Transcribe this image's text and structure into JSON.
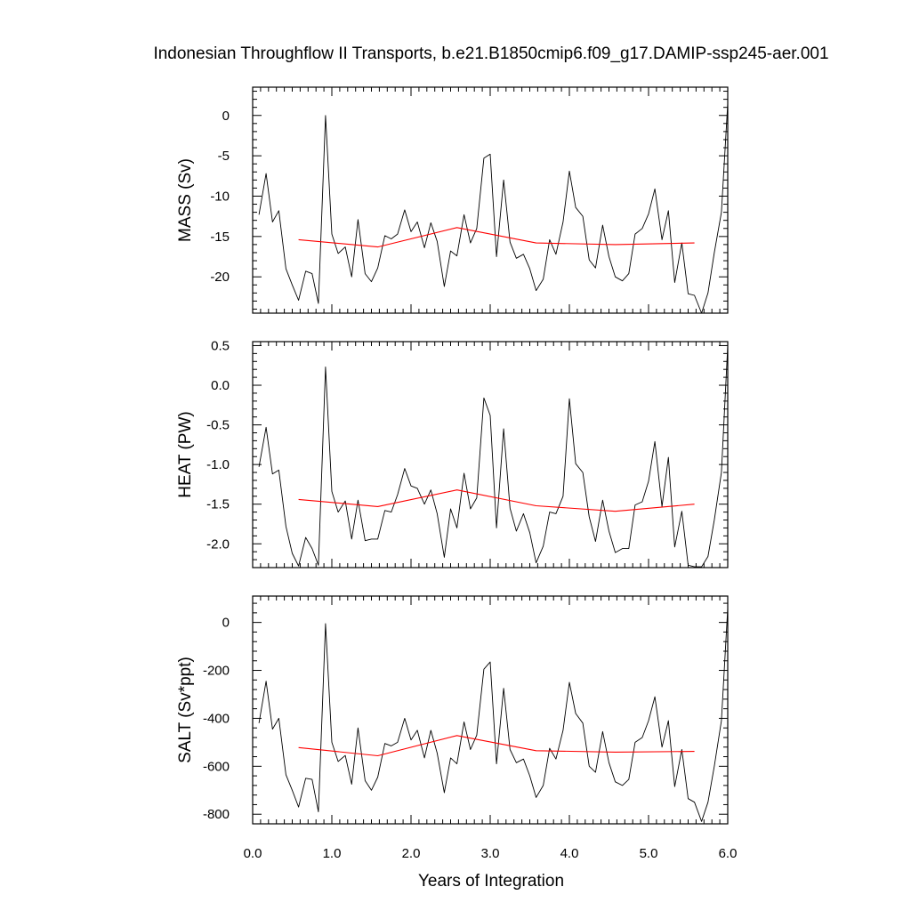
{
  "chart_data": {
    "type": "line",
    "title": "Indonesian Throughflow II Transports, b.e21.B1850cmip6.f09_g17.DAMIP-ssp245-aer.001",
    "xlabel": "Years of Integration",
    "xlim": [
      0,
      6
    ],
    "xticks": [
      0,
      1,
      2,
      3,
      4,
      5,
      6
    ],
    "xtick_labels": [
      "0.0",
      "1.0",
      "2.0",
      "3.0",
      "4.0",
      "5.0",
      "6.0"
    ],
    "panels": [
      {
        "ylabel": "MASS (Sv)",
        "ylim": [
          -24.5,
          3.5
        ],
        "yticks": [
          0,
          -5,
          -10,
          -15,
          -20
        ],
        "ytick_labels": [
          "0",
          "-5",
          "-10",
          "-15",
          "-20"
        ],
        "series": [
          {
            "color": "#000000",
            "x": [
              0.08,
              0.17,
              0.25,
              0.33,
              0.42,
              0.5,
              0.58,
              0.67,
              0.75,
              0.83,
              0.92,
              1.0,
              1.08,
              1.17,
              1.25,
              1.33,
              1.42,
              1.5,
              1.58,
              1.67,
              1.75,
              1.83,
              1.92,
              2.0,
              2.08,
              2.17,
              2.25,
              2.33,
              2.42,
              2.5,
              2.58,
              2.67,
              2.75,
              2.83,
              2.92,
              3.0,
              3.08,
              3.17,
              3.25,
              3.33,
              3.42,
              3.5,
              3.58,
              3.67,
              3.75,
              3.83,
              3.92,
              4.0,
              4.08,
              4.17,
              4.25,
              4.33,
              4.42,
              4.5,
              4.58,
              4.67,
              4.75,
              4.83,
              4.92,
              5.0,
              5.08,
              5.17,
              5.25,
              5.33,
              5.42,
              5.5,
              5.58,
              5.67,
              5.75,
              5.83,
              5.92,
              6.0
            ],
            "y": [
              -12.3,
              -7.2,
              -13.2,
              -11.8,
              -19.0,
              -21.0,
              -22.9,
              -19.3,
              -19.6,
              -23.3,
              0.0,
              -14.7,
              -17.1,
              -16.3,
              -20.0,
              -12.9,
              -19.6,
              -20.6,
              -18.9,
              -14.9,
              -15.3,
              -14.7,
              -11.7,
              -14.4,
              -13.2,
              -16.4,
              -13.3,
              -15.6,
              -21.2,
              -16.8,
              -17.4,
              -12.3,
              -15.8,
              -14.0,
              -5.3,
              -4.8,
              -17.5,
              -8.0,
              -15.7,
              -17.7,
              -17.2,
              -19.0,
              -21.7,
              -20.3,
              -15.4,
              -17.2,
              -13.2,
              -6.9,
              -11.4,
              -12.5,
              -17.9,
              -18.9,
              -13.6,
              -17.5,
              -20.0,
              -20.5,
              -19.6,
              -14.7,
              -14.0,
              -12.2,
              -9.1,
              -15.4,
              -11.8,
              -20.7,
              -15.8,
              -22.1,
              -22.3,
              -24.5,
              -22.0,
              -17.0,
              -12.0,
              1.5
            ]
          },
          {
            "color": "#ff0000",
            "x": [
              0.58,
              1.58,
              2.58,
              3.58,
              4.58,
              5.58
            ],
            "y": [
              -15.4,
              -16.3,
              -13.9,
              -15.8,
              -16.0,
              -15.8
            ]
          }
        ]
      },
      {
        "ylabel": "HEAT (PW)",
        "ylim": [
          -2.3,
          0.55
        ],
        "yticks": [
          0.5,
          0.0,
          -0.5,
          -1.0,
          -1.5,
          -2.0
        ],
        "ytick_labels": [
          "0.5",
          "0.0",
          "-0.5",
          "-1.0",
          "-1.5",
          "-2.0"
        ],
        "series": [
          {
            "color": "#000000",
            "x": [
              0.08,
              0.17,
              0.25,
              0.33,
              0.42,
              0.5,
              0.58,
              0.67,
              0.75,
              0.83,
              0.92,
              1.0,
              1.08,
              1.17,
              1.25,
              1.33,
              1.42,
              1.5,
              1.58,
              1.67,
              1.75,
              1.83,
              1.92,
              2.0,
              2.08,
              2.17,
              2.25,
              2.33,
              2.42,
              2.5,
              2.58,
              2.67,
              2.75,
              2.83,
              2.92,
              3.0,
              3.08,
              3.17,
              3.25,
              3.33,
              3.42,
              3.5,
              3.58,
              3.67,
              3.75,
              3.83,
              3.92,
              4.0,
              4.08,
              4.17,
              4.25,
              4.33,
              4.42,
              4.5,
              4.58,
              4.67,
              4.75,
              4.83,
              4.92,
              5.0,
              5.08,
              5.17,
              5.25,
              5.33,
              5.42,
              5.5,
              5.58,
              5.67,
              5.75,
              5.83,
              5.92,
              6.0
            ],
            "y": [
              -1.03,
              -0.53,
              -1.12,
              -1.07,
              -1.78,
              -2.12,
              -2.28,
              -1.92,
              -2.06,
              -2.27,
              0.23,
              -1.34,
              -1.6,
              -1.46,
              -1.94,
              -1.45,
              -1.96,
              -1.94,
              -1.94,
              -1.58,
              -1.6,
              -1.38,
              -1.05,
              -1.27,
              -1.3,
              -1.5,
              -1.32,
              -1.62,
              -2.17,
              -1.56,
              -1.8,
              -1.11,
              -1.56,
              -1.42,
              -0.16,
              -0.38,
              -1.8,
              -0.55,
              -1.55,
              -1.84,
              -1.62,
              -1.86,
              -2.24,
              -2.03,
              -1.6,
              -1.62,
              -1.4,
              -0.17,
              -0.99,
              -1.1,
              -1.66,
              -1.97,
              -1.45,
              -1.84,
              -2.11,
              -2.06,
              -2.06,
              -1.51,
              -1.47,
              -1.21,
              -0.71,
              -1.53,
              -0.91,
              -2.04,
              -1.59,
              -2.27,
              -2.29,
              -2.29,
              -2.16,
              -1.7,
              -1.1,
              0.5
            ]
          },
          {
            "color": "#ff0000",
            "x": [
              0.58,
              1.58,
              2.58,
              3.58,
              4.58,
              5.58
            ],
            "y": [
              -1.44,
              -1.53,
              -1.32,
              -1.52,
              -1.59,
              -1.5
            ]
          }
        ]
      },
      {
        "ylabel": "SALT (Sv*ppt)",
        "ylim": [
          -840,
          110
        ],
        "yticks": [
          0,
          -200,
          -400,
          -600,
          -800
        ],
        "ytick_labels": [
          "0",
          "-200",
          "-400",
          "-600",
          "-800"
        ],
        "series": [
          {
            "color": "#000000",
            "x": [
              0.08,
              0.17,
              0.25,
              0.33,
              0.42,
              0.5,
              0.58,
              0.67,
              0.75,
              0.83,
              0.92,
              1.0,
              1.08,
              1.17,
              1.25,
              1.33,
              1.42,
              1.5,
              1.58,
              1.67,
              1.75,
              1.83,
              1.92,
              2.0,
              2.08,
              2.17,
              2.25,
              2.33,
              2.42,
              2.5,
              2.58,
              2.67,
              2.75,
              2.83,
              2.92,
              3.0,
              3.08,
              3.17,
              3.25,
              3.33,
              3.42,
              3.5,
              3.58,
              3.67,
              3.75,
              3.83,
              3.92,
              4.0,
              4.08,
              4.17,
              4.25,
              4.33,
              4.42,
              4.5,
              4.58,
              4.67,
              4.75,
              4.83,
              4.92,
              5.0,
              5.08,
              5.17,
              5.25,
              5.33,
              5.42,
              5.5,
              5.58,
              5.67,
              5.75,
              5.83,
              5.92,
              6.0
            ],
            "y": [
              -420,
              -245,
              -445,
              -400,
              -635,
              -700,
              -770,
              -650,
              -655,
              -790,
              -5,
              -500,
              -580,
              -555,
              -675,
              -440,
              -660,
              -700,
              -645,
              -505,
              -515,
              -500,
              -400,
              -490,
              -450,
              -565,
              -450,
              -545,
              -710,
              -565,
              -590,
              -415,
              -530,
              -470,
              -195,
              -165,
              -590,
              -275,
              -530,
              -585,
              -570,
              -640,
              -730,
              -680,
              -525,
              -570,
              -450,
              -250,
              -380,
              -420,
              -600,
              -625,
              -455,
              -585,
              -665,
              -680,
              -655,
              -500,
              -480,
              -410,
              -310,
              -520,
              -410,
              -685,
              -530,
              -735,
              -750,
              -830,
              -750,
              -600,
              -410,
              60
            ]
          },
          {
            "color": "#ff0000",
            "x": [
              0.58,
              1.58,
              2.58,
              3.58,
              4.58,
              5.58
            ],
            "y": [
              -522,
              -556,
              -472,
              -535,
              -541,
              -538
            ]
          }
        ]
      }
    ]
  }
}
